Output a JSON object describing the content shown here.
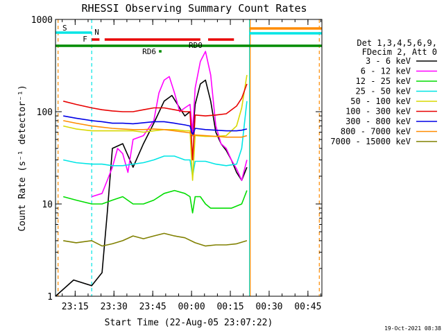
{
  "chart_data": {
    "type": "line",
    "title": "RHESSI Observing Summary Count Rates",
    "xlabel": "Start Time (22-Aug-05 23:07:22)",
    "ylabel": "Count Rate (s⁻¹ detector⁻¹)",
    "x_units": "minutes since 23:07:22",
    "xlim": [
      0,
      103
    ],
    "ylim": [
      1,
      1000
    ],
    "yscale": "log",
    "x_ticks": [
      {
        "label": "23:15",
        "value": 7.6
      },
      {
        "label": "23:30",
        "value": 22.6
      },
      {
        "label": "23:45",
        "value": 37.6
      },
      {
        "label": "00:00",
        "value": 52.6
      },
      {
        "label": "00:15",
        "value": 67.6
      },
      {
        "label": "00:30",
        "value": 82.6
      },
      {
        "label": "00:45",
        "value": 97.6
      }
    ],
    "y_ticks": [
      {
        "label": "1",
        "value": 1
      },
      {
        "label": "10",
        "value": 10
      },
      {
        "label": "100",
        "value": 100
      },
      {
        "label": "1000",
        "value": 1000
      }
    ],
    "legend_header": [
      "Det 1,3,4,5,6,9,",
      "FDecim 2, Att 0"
    ],
    "legend_position": "right",
    "timestamp": "19-Oct-2021 08:38",
    "series": [
      {
        "name": "3 - 6 keV",
        "color": "#000000",
        "x": [
          0,
          7,
          14,
          18,
          20,
          22,
          26,
          30,
          34,
          38,
          42,
          45,
          48,
          50,
          52,
          53,
          54,
          56,
          58,
          60,
          62,
          64,
          66,
          68,
          70,
          72,
          74
        ],
        "y": [
          1,
          1.5,
          1.3,
          1.8,
          8,
          40,
          45,
          25,
          45,
          75,
          130,
          150,
          110,
          90,
          100,
          55,
          120,
          200,
          220,
          130,
          60,
          45,
          38,
          30,
          22,
          18,
          25
        ]
      },
      {
        "name": "6 - 12 keV",
        "color": "#ff00ff",
        "x": [
          14,
          18,
          20,
          22,
          24,
          26,
          28,
          30,
          34,
          38,
          40,
          42,
          44,
          46,
          48,
          50,
          52,
          53,
          54,
          56,
          58,
          60,
          62,
          64,
          66,
          68,
          70,
          72,
          74
        ],
        "y": [
          12,
          13,
          18,
          25,
          40,
          35,
          22,
          50,
          55,
          80,
          160,
          220,
          240,
          160,
          100,
          110,
          120,
          60,
          180,
          350,
          450,
          250,
          70,
          45,
          40,
          30,
          24,
          18,
          30
        ]
      },
      {
        "name": "12 - 25 keV",
        "color": "#00dd00",
        "x": [
          3,
          8,
          14,
          18,
          22,
          26,
          30,
          34,
          38,
          42,
          46,
          50,
          52,
          53,
          54,
          56,
          58,
          60,
          64,
          68,
          72,
          74
        ],
        "y": [
          12,
          11,
          10,
          10,
          11,
          12,
          10,
          10,
          11,
          13,
          14,
          13,
          12,
          8,
          12,
          12,
          10,
          9,
          9,
          9,
          10,
          14
        ]
      },
      {
        "name": "25 - 50 keV",
        "color": "#00e5e5",
        "x": [
          3,
          8,
          14,
          18,
          22,
          26,
          30,
          34,
          38,
          42,
          46,
          50,
          52,
          53,
          54,
          58,
          62,
          66,
          70,
          72,
          74
        ],
        "y": [
          30,
          28,
          27,
          27,
          26,
          26,
          27,
          28,
          30,
          33,
          33,
          30,
          30,
          20,
          29,
          29,
          27,
          26,
          27,
          40,
          130
        ]
      },
      {
        "name": "50 - 100 keV",
        "color": "#d8d800",
        "x": [
          3,
          8,
          14,
          18,
          22,
          26,
          30,
          34,
          38,
          42,
          46,
          50,
          52,
          53,
          54,
          58,
          62,
          66,
          70,
          72,
          74
        ],
        "y": [
          70,
          65,
          62,
          62,
          62,
          62,
          62,
          60,
          62,
          64,
          64,
          62,
          62,
          18,
          55,
          54,
          54,
          55,
          70,
          110,
          250
        ]
      },
      {
        "name": "100 - 300 keV",
        "color": "#e80000",
        "x": [
          3,
          8,
          14,
          18,
          22,
          26,
          30,
          34,
          38,
          42,
          46,
          50,
          52,
          53,
          54,
          58,
          62,
          66,
          70,
          72,
          74
        ],
        "y": [
          130,
          120,
          110,
          105,
          102,
          100,
          100,
          105,
          110,
          110,
          105,
          100,
          100,
          30,
          92,
          90,
          92,
          95,
          115,
          140,
          200
        ]
      },
      {
        "name": "300 - 800 keV",
        "color": "#0000e6",
        "x": [
          3,
          8,
          14,
          18,
          22,
          26,
          30,
          34,
          38,
          42,
          46,
          50,
          52,
          53,
          54,
          58,
          62,
          66,
          70,
          72,
          74
        ],
        "y": [
          90,
          85,
          80,
          78,
          75,
          75,
          74,
          76,
          78,
          78,
          75,
          72,
          70,
          55,
          66,
          64,
          63,
          62,
          62,
          63,
          65
        ]
      },
      {
        "name": "800 - 7000 keV",
        "color": "#ff8c00",
        "x": [
          3,
          8,
          14,
          18,
          22,
          26,
          30,
          34,
          38,
          42,
          46,
          50,
          52,
          53,
          54,
          58,
          62,
          66,
          70,
          72,
          74
        ],
        "y": [
          80,
          75,
          70,
          68,
          66,
          65,
          64,
          64,
          65,
          64,
          62,
          60,
          59,
          55,
          56,
          55,
          54,
          53,
          53,
          53,
          55
        ]
      },
      {
        "name": "7000 - 15000 keV",
        "color": "#808000",
        "x": [
          3,
          8,
          14,
          18,
          22,
          26,
          30,
          34,
          38,
          42,
          46,
          50,
          54,
          58,
          62,
          66,
          70,
          74
        ],
        "y": [
          4,
          3.8,
          4,
          3.5,
          3.7,
          4,
          4.5,
          4.2,
          4.5,
          4.8,
          4.5,
          4.3,
          3.8,
          3.5,
          3.6,
          3.6,
          3.7,
          4
        ]
      }
    ],
    "state_bars": [
      {
        "label": "S",
        "color": "#ff8c00",
        "x": [
          0,
          1
        ]
      },
      {
        "label": "N",
        "color": "#00e5e5",
        "x": [
          0,
          14
        ]
      },
      {
        "label": "F",
        "color": "#e80000",
        "x": [
          14,
          17
        ]
      },
      {
        "label": "",
        "color": "#e80000",
        "x": [
          19,
          56
        ]
      },
      {
        "label": "",
        "color": "#e80000",
        "x": [
          59,
          69
        ]
      },
      {
        "label": "",
        "color": "#008c00",
        "x": [
          0,
          103
        ]
      },
      {
        "label": "RD0",
        "color": "#008c00",
        "x": [
          51.5,
          55
        ]
      },
      {
        "label": "RD6",
        "color": "#008c00",
        "x": [
          40,
          41
        ]
      },
      {
        "label": "",
        "color": "#ff8c00",
        "x": [
          75,
          103
        ]
      },
      {
        "label": "",
        "color": "#00e5e5",
        "x": [
          75,
          103
        ]
      }
    ],
    "vertical_lines": [
      {
        "x": 0,
        "color": "#00e5e5",
        "style": "solid"
      },
      {
        "x": 1,
        "color": "#ff8c00",
        "style": "dashed"
      },
      {
        "x": 14,
        "color": "#00e5e5",
        "style": "dashed"
      },
      {
        "x": 75,
        "color": "#00e5e5",
        "style": "solid"
      },
      {
        "x": 75.3,
        "color": "#ff8c00",
        "style": "solid"
      },
      {
        "x": 102,
        "color": "#ff8c00",
        "style": "dashed"
      }
    ]
  }
}
